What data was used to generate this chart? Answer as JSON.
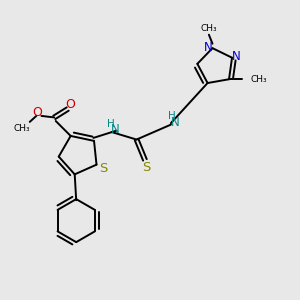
{
  "bg_color": "#e8e8e8",
  "bond_color": "#000000",
  "S_color": "#888800",
  "N_color": "#0000cc",
  "O_color": "#cc0000",
  "NH_color": "#008888",
  "figsize": [
    3.0,
    3.0
  ],
  "dpi": 100,
  "xlim": [
    0,
    10
  ],
  "ylim": [
    0,
    10
  ]
}
